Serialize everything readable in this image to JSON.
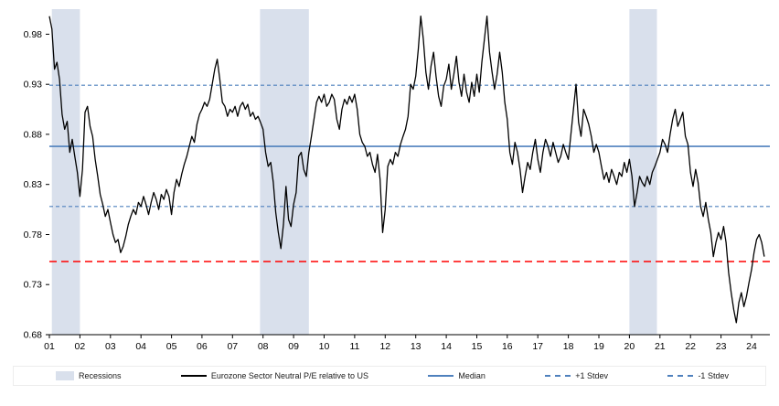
{
  "legend": {
    "items": [
      {
        "label": "Recessions",
        "swatch": "recession-band"
      },
      {
        "label": "Eurozone Sector Neutral P/E relative to US",
        "swatch": "black-line"
      },
      {
        "label": "Median",
        "swatch": "blue-solid-line"
      },
      {
        "label": "+1 Stdev",
        "swatch": "blue-dashed-line"
      },
      {
        "label": "-1 Stdev",
        "swatch": "blue-dashed-line"
      }
    ]
  },
  "chart_data": {
    "type": "line",
    "title": "",
    "xlabel": "",
    "ylabel": "",
    "grid": false,
    "legend_position": "bottom",
    "x_axis": {
      "range": [
        2001.0,
        2024.6
      ],
      "ticks": [
        {
          "label": "01",
          "x": 2001
        },
        {
          "label": "02",
          "x": 2002
        },
        {
          "label": "03",
          "x": 2003
        },
        {
          "label": "04",
          "x": 2004
        },
        {
          "label": "05",
          "x": 2005
        },
        {
          "label": "06",
          "x": 2006
        },
        {
          "label": "07",
          "x": 2007
        },
        {
          "label": "08",
          "x": 2008
        },
        {
          "label": "09",
          "x": 2009
        },
        {
          "label": "10",
          "x": 2010
        },
        {
          "label": "11",
          "x": 2011
        },
        {
          "label": "12",
          "x": 2012
        },
        {
          "label": "13",
          "x": 2013
        },
        {
          "label": "14",
          "x": 2014
        },
        {
          "label": "15",
          "x": 2015
        },
        {
          "label": "16",
          "x": 2016
        },
        {
          "label": "17",
          "x": 2017
        },
        {
          "label": "18",
          "x": 2018
        },
        {
          "label": "19",
          "x": 2019
        },
        {
          "label": "20",
          "x": 2020
        },
        {
          "label": "21",
          "x": 2021
        },
        {
          "label": "22",
          "x": 2022
        },
        {
          "label": "23",
          "x": 2023
        },
        {
          "label": "24",
          "x": 2024
        }
      ]
    },
    "y_axis": {
      "range": [
        0.68,
        1.005
      ],
      "ticks": [
        {
          "label": "0.68",
          "y": 0.68
        },
        {
          "label": "0.73",
          "y": 0.73
        },
        {
          "label": "0.78",
          "y": 0.78
        },
        {
          "label": "0.83",
          "y": 0.83
        },
        {
          "label": "0.88",
          "y": 0.88
        },
        {
          "label": "0.93",
          "y": 0.93
        },
        {
          "label": "0.98",
          "y": 0.98
        }
      ]
    },
    "recession_bands": [
      {
        "x_start": 2001.08,
        "x_end": 2002.0
      },
      {
        "x_start": 2007.9,
        "x_end": 2009.5
      },
      {
        "x_start": 2020.0,
        "x_end": 2020.9
      }
    ],
    "band_color": "#d9e0ec",
    "reference_lines": [
      {
        "name": "median-line",
        "label": "Median",
        "value": 0.868,
        "style": "solid",
        "color": "#4f81bd",
        "width": 1.6
      },
      {
        "name": "plus-1-stdev-line",
        "label": "+1 Stdev",
        "value": 0.929,
        "style": "dashed",
        "color": "#4f81bd",
        "width": 1.2
      },
      {
        "name": "minus-1-stdev-line",
        "label": "-1 Stdev",
        "value": 0.808,
        "style": "dashed",
        "color": "#4f81bd",
        "width": 1.2
      },
      {
        "name": "red-dashed-line",
        "label": "",
        "value": 0.753,
        "style": "long-dashed",
        "color": "#ff0000",
        "width": 1.6
      }
    ],
    "series": {
      "name": "Eurozone Sector Neutral P/E relative to US",
      "color": "#000000",
      "x_start": 2001.0,
      "x_step": 0.0833333,
      "values": [
        0.998,
        0.985,
        0.945,
        0.952,
        0.935,
        0.9,
        0.885,
        0.893,
        0.862,
        0.875,
        0.858,
        0.842,
        0.818,
        0.845,
        0.902,
        0.908,
        0.888,
        0.878,
        0.855,
        0.838,
        0.82,
        0.81,
        0.798,
        0.805,
        0.792,
        0.78,
        0.772,
        0.775,
        0.762,
        0.768,
        0.778,
        0.79,
        0.798,
        0.805,
        0.8,
        0.812,
        0.808,
        0.818,
        0.81,
        0.8,
        0.812,
        0.822,
        0.815,
        0.805,
        0.82,
        0.815,
        0.825,
        0.818,
        0.8,
        0.822,
        0.835,
        0.828,
        0.84,
        0.85,
        0.858,
        0.868,
        0.878,
        0.872,
        0.89,
        0.9,
        0.905,
        0.912,
        0.908,
        0.915,
        0.93,
        0.945,
        0.955,
        0.935,
        0.912,
        0.908,
        0.898,
        0.905,
        0.902,
        0.908,
        0.898,
        0.908,
        0.912,
        0.905,
        0.91,
        0.898,
        0.902,
        0.895,
        0.898,
        0.892,
        0.885,
        0.862,
        0.848,
        0.852,
        0.832,
        0.802,
        0.782,
        0.766,
        0.79,
        0.828,
        0.795,
        0.788,
        0.81,
        0.822,
        0.858,
        0.862,
        0.845,
        0.838,
        0.862,
        0.878,
        0.895,
        0.912,
        0.918,
        0.912,
        0.92,
        0.908,
        0.912,
        0.92,
        0.915,
        0.895,
        0.885,
        0.905,
        0.915,
        0.91,
        0.918,
        0.912,
        0.92,
        0.905,
        0.88,
        0.872,
        0.868,
        0.858,
        0.862,
        0.85,
        0.842,
        0.86,
        0.835,
        0.782,
        0.805,
        0.848,
        0.855,
        0.85,
        0.862,
        0.858,
        0.87,
        0.878,
        0.885,
        0.898,
        0.93,
        0.925,
        0.938,
        0.965,
        0.998,
        0.975,
        0.942,
        0.925,
        0.948,
        0.962,
        0.938,
        0.918,
        0.908,
        0.928,
        0.935,
        0.95,
        0.925,
        0.94,
        0.958,
        0.932,
        0.918,
        0.94,
        0.922,
        0.912,
        0.932,
        0.918,
        0.94,
        0.922,
        0.952,
        0.975,
        0.998,
        0.962,
        0.942,
        0.925,
        0.94,
        0.962,
        0.942,
        0.912,
        0.895,
        0.862,
        0.85,
        0.872,
        0.862,
        0.845,
        0.822,
        0.838,
        0.852,
        0.845,
        0.862,
        0.875,
        0.855,
        0.842,
        0.862,
        0.875,
        0.868,
        0.858,
        0.872,
        0.862,
        0.852,
        0.858,
        0.87,
        0.862,
        0.855,
        0.88,
        0.905,
        0.93,
        0.892,
        0.878,
        0.905,
        0.898,
        0.89,
        0.878,
        0.862,
        0.87,
        0.862,
        0.848,
        0.835,
        0.842,
        0.832,
        0.845,
        0.838,
        0.83,
        0.842,
        0.838,
        0.852,
        0.842,
        0.855,
        0.838,
        0.808,
        0.822,
        0.838,
        0.832,
        0.828,
        0.838,
        0.83,
        0.842,
        0.848,
        0.855,
        0.862,
        0.875,
        0.87,
        0.862,
        0.88,
        0.895,
        0.905,
        0.888,
        0.895,
        0.902,
        0.878,
        0.87,
        0.842,
        0.828,
        0.845,
        0.832,
        0.808,
        0.798,
        0.812,
        0.795,
        0.782,
        0.758,
        0.772,
        0.782,
        0.775,
        0.788,
        0.772,
        0.742,
        0.722,
        0.705,
        0.692,
        0.712,
        0.722,
        0.708,
        0.718,
        0.732,
        0.745,
        0.762,
        0.775,
        0.78,
        0.772,
        0.758
      ]
    }
  }
}
